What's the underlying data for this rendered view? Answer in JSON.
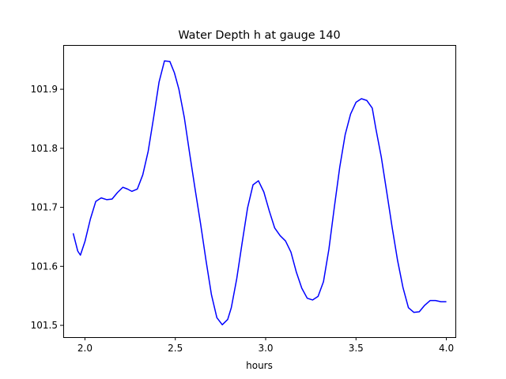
{
  "chart_data": {
    "type": "line",
    "title": "Water Depth h at gauge 140",
    "xlabel": "hours",
    "ylabel": "",
    "xlim": [
      1.88,
      4.05
    ],
    "ylim": [
      101.48,
      101.975
    ],
    "xticks": [
      2.0,
      2.5,
      3.0,
      3.5,
      4.0
    ],
    "xtick_labels": [
      "2.0",
      "2.5",
      "3.0",
      "3.5",
      "4.0"
    ],
    "yticks": [
      101.5,
      101.6,
      101.7,
      101.8,
      101.9
    ],
    "ytick_labels": [
      "101.5",
      "101.6",
      "101.7",
      "101.8",
      "101.9"
    ],
    "grid": false,
    "series": [
      {
        "color": "#0000ff",
        "x": [
          1.935,
          1.96,
          1.975,
          2.0,
          2.03,
          2.06,
          2.09,
          2.12,
          2.15,
          2.18,
          2.21,
          2.235,
          2.26,
          2.29,
          2.32,
          2.35,
          2.38,
          2.41,
          2.44,
          2.47,
          2.495,
          2.52,
          2.55,
          2.58,
          2.61,
          2.64,
          2.67,
          2.7,
          2.73,
          2.76,
          2.79,
          2.81,
          2.84,
          2.87,
          2.9,
          2.93,
          2.96,
          2.99,
          3.02,
          3.05,
          3.08,
          3.11,
          3.14,
          3.17,
          3.2,
          3.23,
          3.26,
          3.29,
          3.32,
          3.35,
          3.38,
          3.41,
          3.44,
          3.47,
          3.5,
          3.53,
          3.56,
          3.59,
          3.61,
          3.64,
          3.67,
          3.7,
          3.73,
          3.76,
          3.79,
          3.82,
          3.85,
          3.88,
          3.91,
          3.94,
          3.97,
          4.0
        ],
        "y": [
          101.656,
          101.626,
          101.619,
          101.642,
          101.68,
          101.71,
          101.716,
          101.713,
          101.714,
          101.725,
          101.734,
          101.731,
          101.727,
          101.731,
          101.755,
          101.795,
          101.852,
          101.912,
          101.948,
          101.947,
          101.928,
          101.9,
          101.852,
          101.79,
          101.73,
          101.672,
          101.61,
          101.552,
          101.513,
          101.501,
          101.51,
          101.53,
          101.579,
          101.64,
          101.699,
          101.738,
          101.745,
          101.726,
          101.694,
          101.665,
          101.652,
          101.643,
          101.624,
          101.59,
          101.563,
          101.546,
          101.543,
          101.549,
          101.574,
          101.629,
          101.7,
          101.768,
          101.823,
          101.858,
          101.878,
          101.884,
          101.881,
          101.868,
          101.833,
          101.785,
          101.726,
          101.666,
          101.61,
          101.564,
          101.53,
          101.522,
          101.523,
          101.534,
          101.542,
          101.542,
          101.54,
          101.54
        ]
      }
    ]
  }
}
